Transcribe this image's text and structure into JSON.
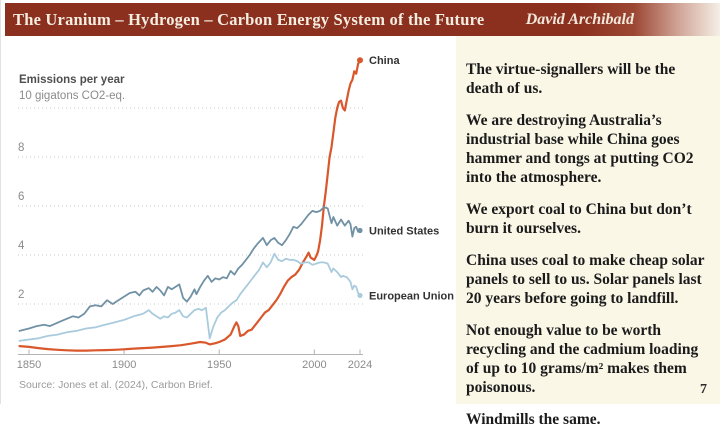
{
  "header": {
    "title": "The Uranium – Hydrogen – Carbon Energy System of the Future",
    "author": "David Archibald",
    "bg_color": "#8b2f1f"
  },
  "slide": {
    "page_number": "7",
    "panel_bg": "#faf7e7"
  },
  "panel": {
    "paragraphs": [
      "The virtue-signallers will be the death of us.",
      "We are destroying Australia’s industrial base while China goes hammer and tongs at putting CO2 into the atmosphere.",
      "We export coal to China but don’t burn it ourselves.",
      "China uses coal to make cheap solar panels to sell to us. Solar panels last 20 years before going to landfill.",
      "Not enough value to be worth recycling and the cadmium loading of up to 10 grams/m² makes them poisonous.",
      "Windmills the same."
    ]
  },
  "chart_data": {
    "type": "line",
    "title": "Emissions per year",
    "unit_label": "10 gigatons CO2-eq.",
    "source": "Source: Jones et al. (2024), Carbon Brief.",
    "x_ticks": [
      1850,
      1900,
      1950,
      2000,
      2024
    ],
    "y_ticks": [
      2,
      4,
      6,
      8,
      10
    ],
    "xlim": [
      1845,
      2024
    ],
    "ylim": [
      0,
      12
    ],
    "grid": "dotted-horizontal",
    "legend_position": "end-of-line-labels",
    "grid_color": "#c9c9c9",
    "axis_color": "#b3b3b3",
    "series": [
      {
        "name": "China",
        "color": "#d9572b",
        "points": [
          [
            1845,
            0.28
          ],
          [
            1850,
            0.25
          ],
          [
            1855,
            0.2
          ],
          [
            1860,
            0.16
          ],
          [
            1865,
            0.13
          ],
          [
            1870,
            0.11
          ],
          [
            1875,
            0.1
          ],
          [
            1880,
            0.1
          ],
          [
            1885,
            0.11
          ],
          [
            1890,
            0.12
          ],
          [
            1895,
            0.13
          ],
          [
            1900,
            0.15
          ],
          [
            1905,
            0.18
          ],
          [
            1910,
            0.2
          ],
          [
            1915,
            0.22
          ],
          [
            1920,
            0.25
          ],
          [
            1925,
            0.28
          ],
          [
            1930,
            0.32
          ],
          [
            1935,
            0.38
          ],
          [
            1940,
            0.45
          ],
          [
            1943,
            0.42
          ],
          [
            1945,
            0.35
          ],
          [
            1948,
            0.4
          ],
          [
            1950,
            0.45
          ],
          [
            1953,
            0.55
          ],
          [
            1956,
            0.75
          ],
          [
            1958,
            1.1
          ],
          [
            1959,
            1.25
          ],
          [
            1960,
            1.1
          ],
          [
            1961,
            0.7
          ],
          [
            1963,
            0.75
          ],
          [
            1965,
            0.9
          ],
          [
            1967,
            0.95
          ],
          [
            1970,
            1.25
          ],
          [
            1972,
            1.45
          ],
          [
            1974,
            1.65
          ],
          [
            1976,
            1.75
          ],
          [
            1978,
            1.95
          ],
          [
            1980,
            2.15
          ],
          [
            1982,
            2.4
          ],
          [
            1984,
            2.7
          ],
          [
            1986,
            2.95
          ],
          [
            1988,
            3.1
          ],
          [
            1990,
            3.2
          ],
          [
            1992,
            3.4
          ],
          [
            1994,
            3.7
          ],
          [
            1996,
            3.95
          ],
          [
            1997,
            4.1
          ],
          [
            1998,
            3.9
          ],
          [
            2000,
            3.8
          ],
          [
            2001,
            3.95
          ],
          [
            2002,
            4.15
          ],
          [
            2003,
            4.6
          ],
          [
            2004,
            5.2
          ],
          [
            2005,
            6.0
          ],
          [
            2006,
            6.6
          ],
          [
            2007,
            7.3
          ],
          [
            2008,
            8.0
          ],
          [
            2009,
            8.4
          ],
          [
            2010,
            9.0
          ],
          [
            2011,
            9.6
          ],
          [
            2012,
            10.0
          ],
          [
            2013,
            10.25
          ],
          [
            2014,
            10.3
          ],
          [
            2015,
            10.0
          ],
          [
            2016,
            9.9
          ],
          [
            2017,
            10.3
          ],
          [
            2018,
            10.7
          ],
          [
            2019,
            11.0
          ],
          [
            2020,
            11.15
          ],
          [
            2021,
            11.5
          ],
          [
            2022,
            11.4
          ],
          [
            2023,
            11.8
          ],
          [
            2024,
            11.95
          ]
        ]
      },
      {
        "name": "United States",
        "color": "#7191a5",
        "points": [
          [
            1845,
            0.9
          ],
          [
            1850,
            1.0
          ],
          [
            1854,
            1.1
          ],
          [
            1858,
            1.15
          ],
          [
            1861,
            1.1
          ],
          [
            1864,
            1.2
          ],
          [
            1867,
            1.3
          ],
          [
            1870,
            1.4
          ],
          [
            1873,
            1.5
          ],
          [
            1876,
            1.45
          ],
          [
            1879,
            1.6
          ],
          [
            1882,
            1.9
          ],
          [
            1885,
            1.95
          ],
          [
            1888,
            1.9
          ],
          [
            1891,
            2.15
          ],
          [
            1894,
            2.0
          ],
          [
            1897,
            2.15
          ],
          [
            1900,
            2.3
          ],
          [
            1903,
            2.45
          ],
          [
            1906,
            2.5
          ],
          [
            1908,
            2.35
          ],
          [
            1910,
            2.55
          ],
          [
            1913,
            2.65
          ],
          [
            1915,
            2.5
          ],
          [
            1917,
            2.7
          ],
          [
            1919,
            2.55
          ],
          [
            1921,
            2.35
          ],
          [
            1923,
            2.7
          ],
          [
            1925,
            2.6
          ],
          [
            1927,
            2.7
          ],
          [
            1929,
            2.8
          ],
          [
            1931,
            2.25
          ],
          [
            1933,
            2.1
          ],
          [
            1935,
            2.3
          ],
          [
            1937,
            2.6
          ],
          [
            1938,
            2.4
          ],
          [
            1940,
            2.7
          ],
          [
            1942,
            2.95
          ],
          [
            1944,
            3.15
          ],
          [
            1946,
            2.9
          ],
          [
            1948,
            3.05
          ],
          [
            1950,
            3.0
          ],
          [
            1952,
            3.1
          ],
          [
            1954,
            3.05
          ],
          [
            1956,
            3.35
          ],
          [
            1958,
            3.2
          ],
          [
            1960,
            3.45
          ],
          [
            1962,
            3.6
          ],
          [
            1964,
            3.8
          ],
          [
            1966,
            4.0
          ],
          [
            1968,
            4.25
          ],
          [
            1970,
            4.45
          ],
          [
            1973,
            4.7
          ],
          [
            1975,
            4.4
          ],
          [
            1977,
            4.6
          ],
          [
            1979,
            4.7
          ],
          [
            1981,
            4.5
          ],
          [
            1983,
            4.4
          ],
          [
            1985,
            4.6
          ],
          [
            1987,
            4.85
          ],
          [
            1989,
            5.15
          ],
          [
            1991,
            5.1
          ],
          [
            1993,
            5.25
          ],
          [
            1995,
            5.45
          ],
          [
            1997,
            5.65
          ],
          [
            1999,
            5.8
          ],
          [
            2001,
            5.75
          ],
          [
            2003,
            5.8
          ],
          [
            2005,
            5.95
          ],
          [
            2007,
            5.9
          ],
          [
            2009,
            5.3
          ],
          [
            2010,
            5.55
          ],
          [
            2012,
            5.2
          ],
          [
            2014,
            5.45
          ],
          [
            2016,
            5.2
          ],
          [
            2018,
            5.4
          ],
          [
            2019,
            5.25
          ],
          [
            2020,
            4.75
          ],
          [
            2021,
            5.1
          ],
          [
            2022,
            5.15
          ],
          [
            2023,
            4.95
          ],
          [
            2024,
            5.0
          ]
        ]
      },
      {
        "name": "European Union",
        "color": "#a9cbdd",
        "points": [
          [
            1845,
            0.5
          ],
          [
            1850,
            0.55
          ],
          [
            1855,
            0.6
          ],
          [
            1860,
            0.7
          ],
          [
            1865,
            0.75
          ],
          [
            1870,
            0.85
          ],
          [
            1875,
            0.9
          ],
          [
            1880,
            1.0
          ],
          [
            1885,
            1.05
          ],
          [
            1890,
            1.15
          ],
          [
            1895,
            1.25
          ],
          [
            1900,
            1.35
          ],
          [
            1905,
            1.5
          ],
          [
            1910,
            1.6
          ],
          [
            1913,
            1.75
          ],
          [
            1915,
            1.6
          ],
          [
            1917,
            1.5
          ],
          [
            1919,
            1.4
          ],
          [
            1921,
            1.5
          ],
          [
            1923,
            1.45
          ],
          [
            1925,
            1.6
          ],
          [
            1927,
            1.65
          ],
          [
            1929,
            1.75
          ],
          [
            1931,
            1.5
          ],
          [
            1933,
            1.45
          ],
          [
            1935,
            1.6
          ],
          [
            1937,
            1.75
          ],
          [
            1939,
            1.8
          ],
          [
            1941,
            1.75
          ],
          [
            1943,
            1.85
          ],
          [
            1945,
            0.6
          ],
          [
            1947,
            1.1
          ],
          [
            1949,
            1.45
          ],
          [
            1951,
            1.65
          ],
          [
            1953,
            1.75
          ],
          [
            1955,
            1.9
          ],
          [
            1957,
            2.05
          ],
          [
            1959,
            2.15
          ],
          [
            1961,
            2.4
          ],
          [
            1963,
            2.6
          ],
          [
            1965,
            2.8
          ],
          [
            1967,
            3.0
          ],
          [
            1969,
            3.2
          ],
          [
            1971,
            3.4
          ],
          [
            1973,
            3.7
          ],
          [
            1975,
            3.5
          ],
          [
            1977,
            3.7
          ],
          [
            1979,
            4.05
          ],
          [
            1981,
            3.8
          ],
          [
            1983,
            3.75
          ],
          [
            1985,
            3.85
          ],
          [
            1987,
            3.8
          ],
          [
            1989,
            3.8
          ],
          [
            1991,
            3.75
          ],
          [
            1993,
            3.65
          ],
          [
            1995,
            3.7
          ],
          [
            1997,
            3.7
          ],
          [
            1999,
            3.6
          ],
          [
            2001,
            3.65
          ],
          [
            2003,
            3.7
          ],
          [
            2005,
            3.7
          ],
          [
            2007,
            3.65
          ],
          [
            2009,
            3.3
          ],
          [
            2010,
            3.45
          ],
          [
            2012,
            3.3
          ],
          [
            2014,
            3.1
          ],
          [
            2015,
            3.15
          ],
          [
            2017,
            3.1
          ],
          [
            2019,
            2.9
          ],
          [
            2020,
            2.6
          ],
          [
            2021,
            2.75
          ],
          [
            2022,
            2.7
          ],
          [
            2023,
            2.45
          ],
          [
            2024,
            2.35
          ]
        ]
      }
    ]
  }
}
